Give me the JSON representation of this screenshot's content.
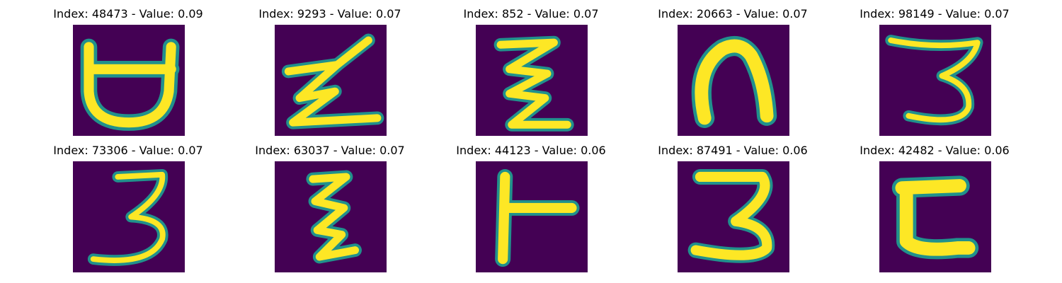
{
  "colors": {
    "background": "#440154",
    "stroke_outer": "#21918c",
    "stroke_inner": "#fde725"
  },
  "panels": [
    {
      "title": "Index: 48473 - Value: 0.09",
      "glyph": "shape-48473"
    },
    {
      "title": "Index: 9293 - Value: 0.07",
      "glyph": "shape-9293"
    },
    {
      "title": "Index: 852 - Value: 0.07",
      "glyph": "shape-852"
    },
    {
      "title": "Index: 20663 - Value: 0.07",
      "glyph": "shape-20663"
    },
    {
      "title": "Index: 98149 - Value: 0.07",
      "glyph": "shape-98149"
    },
    {
      "title": "Index: 73306 - Value: 0.07",
      "glyph": "shape-73306"
    },
    {
      "title": "Index: 63037 - Value: 0.07",
      "glyph": "shape-63037"
    },
    {
      "title": "Index: 44123 - Value: 0.06",
      "glyph": "shape-44123"
    },
    {
      "title": "Index: 87491 - Value: 0.06",
      "glyph": "shape-87491"
    },
    {
      "title": "Index: 42482 - Value: 0.06",
      "glyph": "shape-42482"
    }
  ]
}
